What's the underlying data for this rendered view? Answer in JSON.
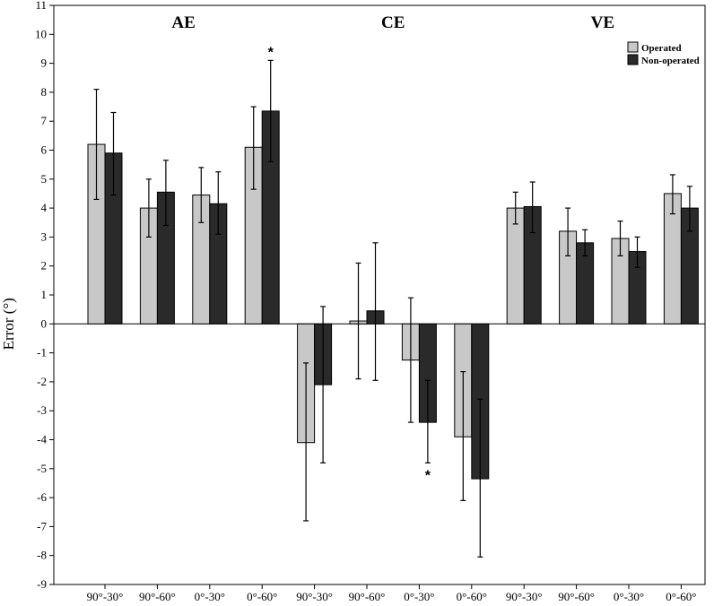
{
  "chart_data": {
    "type": "bar",
    "ylabel": "Error (°)",
    "ylim": [
      -9,
      11
    ],
    "yticks": [
      "-9",
      "-8",
      "-7",
      "-6",
      "-5",
      "-4",
      "-3",
      "-2",
      "-1",
      "0",
      "1",
      "2",
      "3",
      "4",
      "5",
      "6",
      "7",
      "8",
      "9",
      "10",
      "11"
    ],
    "grid": false,
    "legend_position": "top-right",
    "groups": [
      {
        "label": "AE",
        "categories": [
          "90°-30°",
          "90°-60°",
          "0°-30°",
          "0°-60°"
        ]
      },
      {
        "label": "CE",
        "categories": [
          "90°-30°",
          "90°-60°",
          "0°-30°",
          "0°-60°"
        ]
      },
      {
        "label": "VE",
        "categories": [
          "90°-30°",
          "90°-60°",
          "0°-30°",
          "0°-60°"
        ]
      }
    ],
    "series": [
      {
        "name": "Operated",
        "color": "#c8c8c8",
        "values": [
          6.2,
          4.0,
          4.45,
          6.1,
          -4.1,
          0.1,
          -1.25,
          -3.9,
          4.0,
          3.2,
          2.95,
          4.5
        ],
        "err_low": [
          4.3,
          3.0,
          3.5,
          4.65,
          -6.8,
          -1.9,
          -3.4,
          -6.1,
          3.45,
          2.35,
          2.35,
          3.8
        ],
        "err_high": [
          8.1,
          5.0,
          5.4,
          7.5,
          -1.35,
          2.1,
          0.9,
          -1.65,
          4.55,
          4.0,
          3.55,
          5.15
        ]
      },
      {
        "name": "Non-operated",
        "color": "#2a2a2a",
        "values": [
          5.9,
          4.55,
          4.15,
          7.35,
          -2.1,
          0.45,
          -3.4,
          -5.35,
          4.05,
          2.8,
          2.5,
          4.0
        ],
        "err_low": [
          4.45,
          3.4,
          3.1,
          5.6,
          -4.8,
          -1.95,
          -4.8,
          -8.05,
          3.15,
          2.35,
          1.95,
          3.2
        ],
        "err_high": [
          7.3,
          5.65,
          5.25,
          9.1,
          0.6,
          2.8,
          -1.95,
          -2.6,
          4.9,
          3.25,
          3.0,
          4.75
        ]
      }
    ],
    "annotations": [
      {
        "text": "*",
        "index": 3,
        "series": 1,
        "y": 9.4
      },
      {
        "text": "*",
        "index": 6,
        "series": 1,
        "y": -5.2
      }
    ]
  }
}
